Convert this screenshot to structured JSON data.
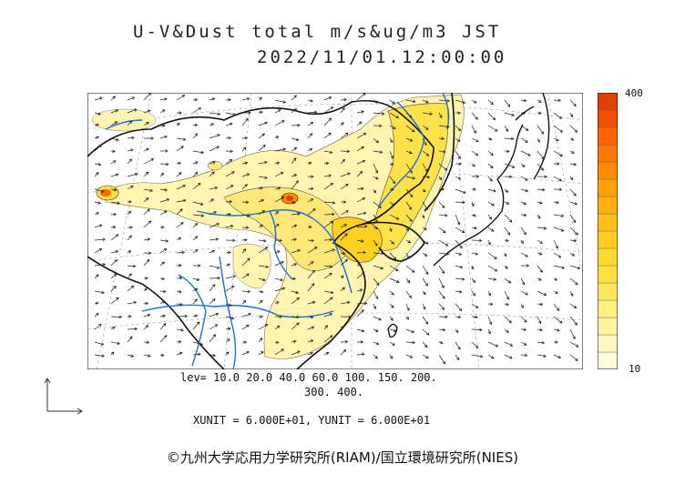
{
  "title": {
    "line1": "U-V&Dust total m/s&ug/m3 JST",
    "line2": "2022/11/01.12:00:00"
  },
  "colorbar": {
    "max_label": "400",
    "min_label": "10",
    "colors": [
      "#ffffe0",
      "#fff8c0",
      "#fff5a0",
      "#fff080",
      "#ffe860",
      "#ffe040",
      "#ffd830",
      "#ffcc20",
      "#ffbe18",
      "#ffb010",
      "#ffa008",
      "#ff8c00",
      "#ff7800",
      "#ff6400",
      "#f05000",
      "#e04000"
    ]
  },
  "legend": {
    "lev_line1": "lev= 10.0 20.0 40.0 60.0 100. 150. 200.",
    "lev_line2": "300. 400.",
    "units": "XUNIT = 6.000E+01, YUNIT = 6.000E+01"
  },
  "map": {
    "dust_color_light": "#fff4b0",
    "dust_color_mid": "#ffe24a",
    "dust_color_hot": "#ff6a00",
    "river_color": "#1a6fe0",
    "coast_color": "#111111"
  },
  "copyright": "©九州大学応用力学研究所(RIAM)/国立環境研究所(NIES)"
}
